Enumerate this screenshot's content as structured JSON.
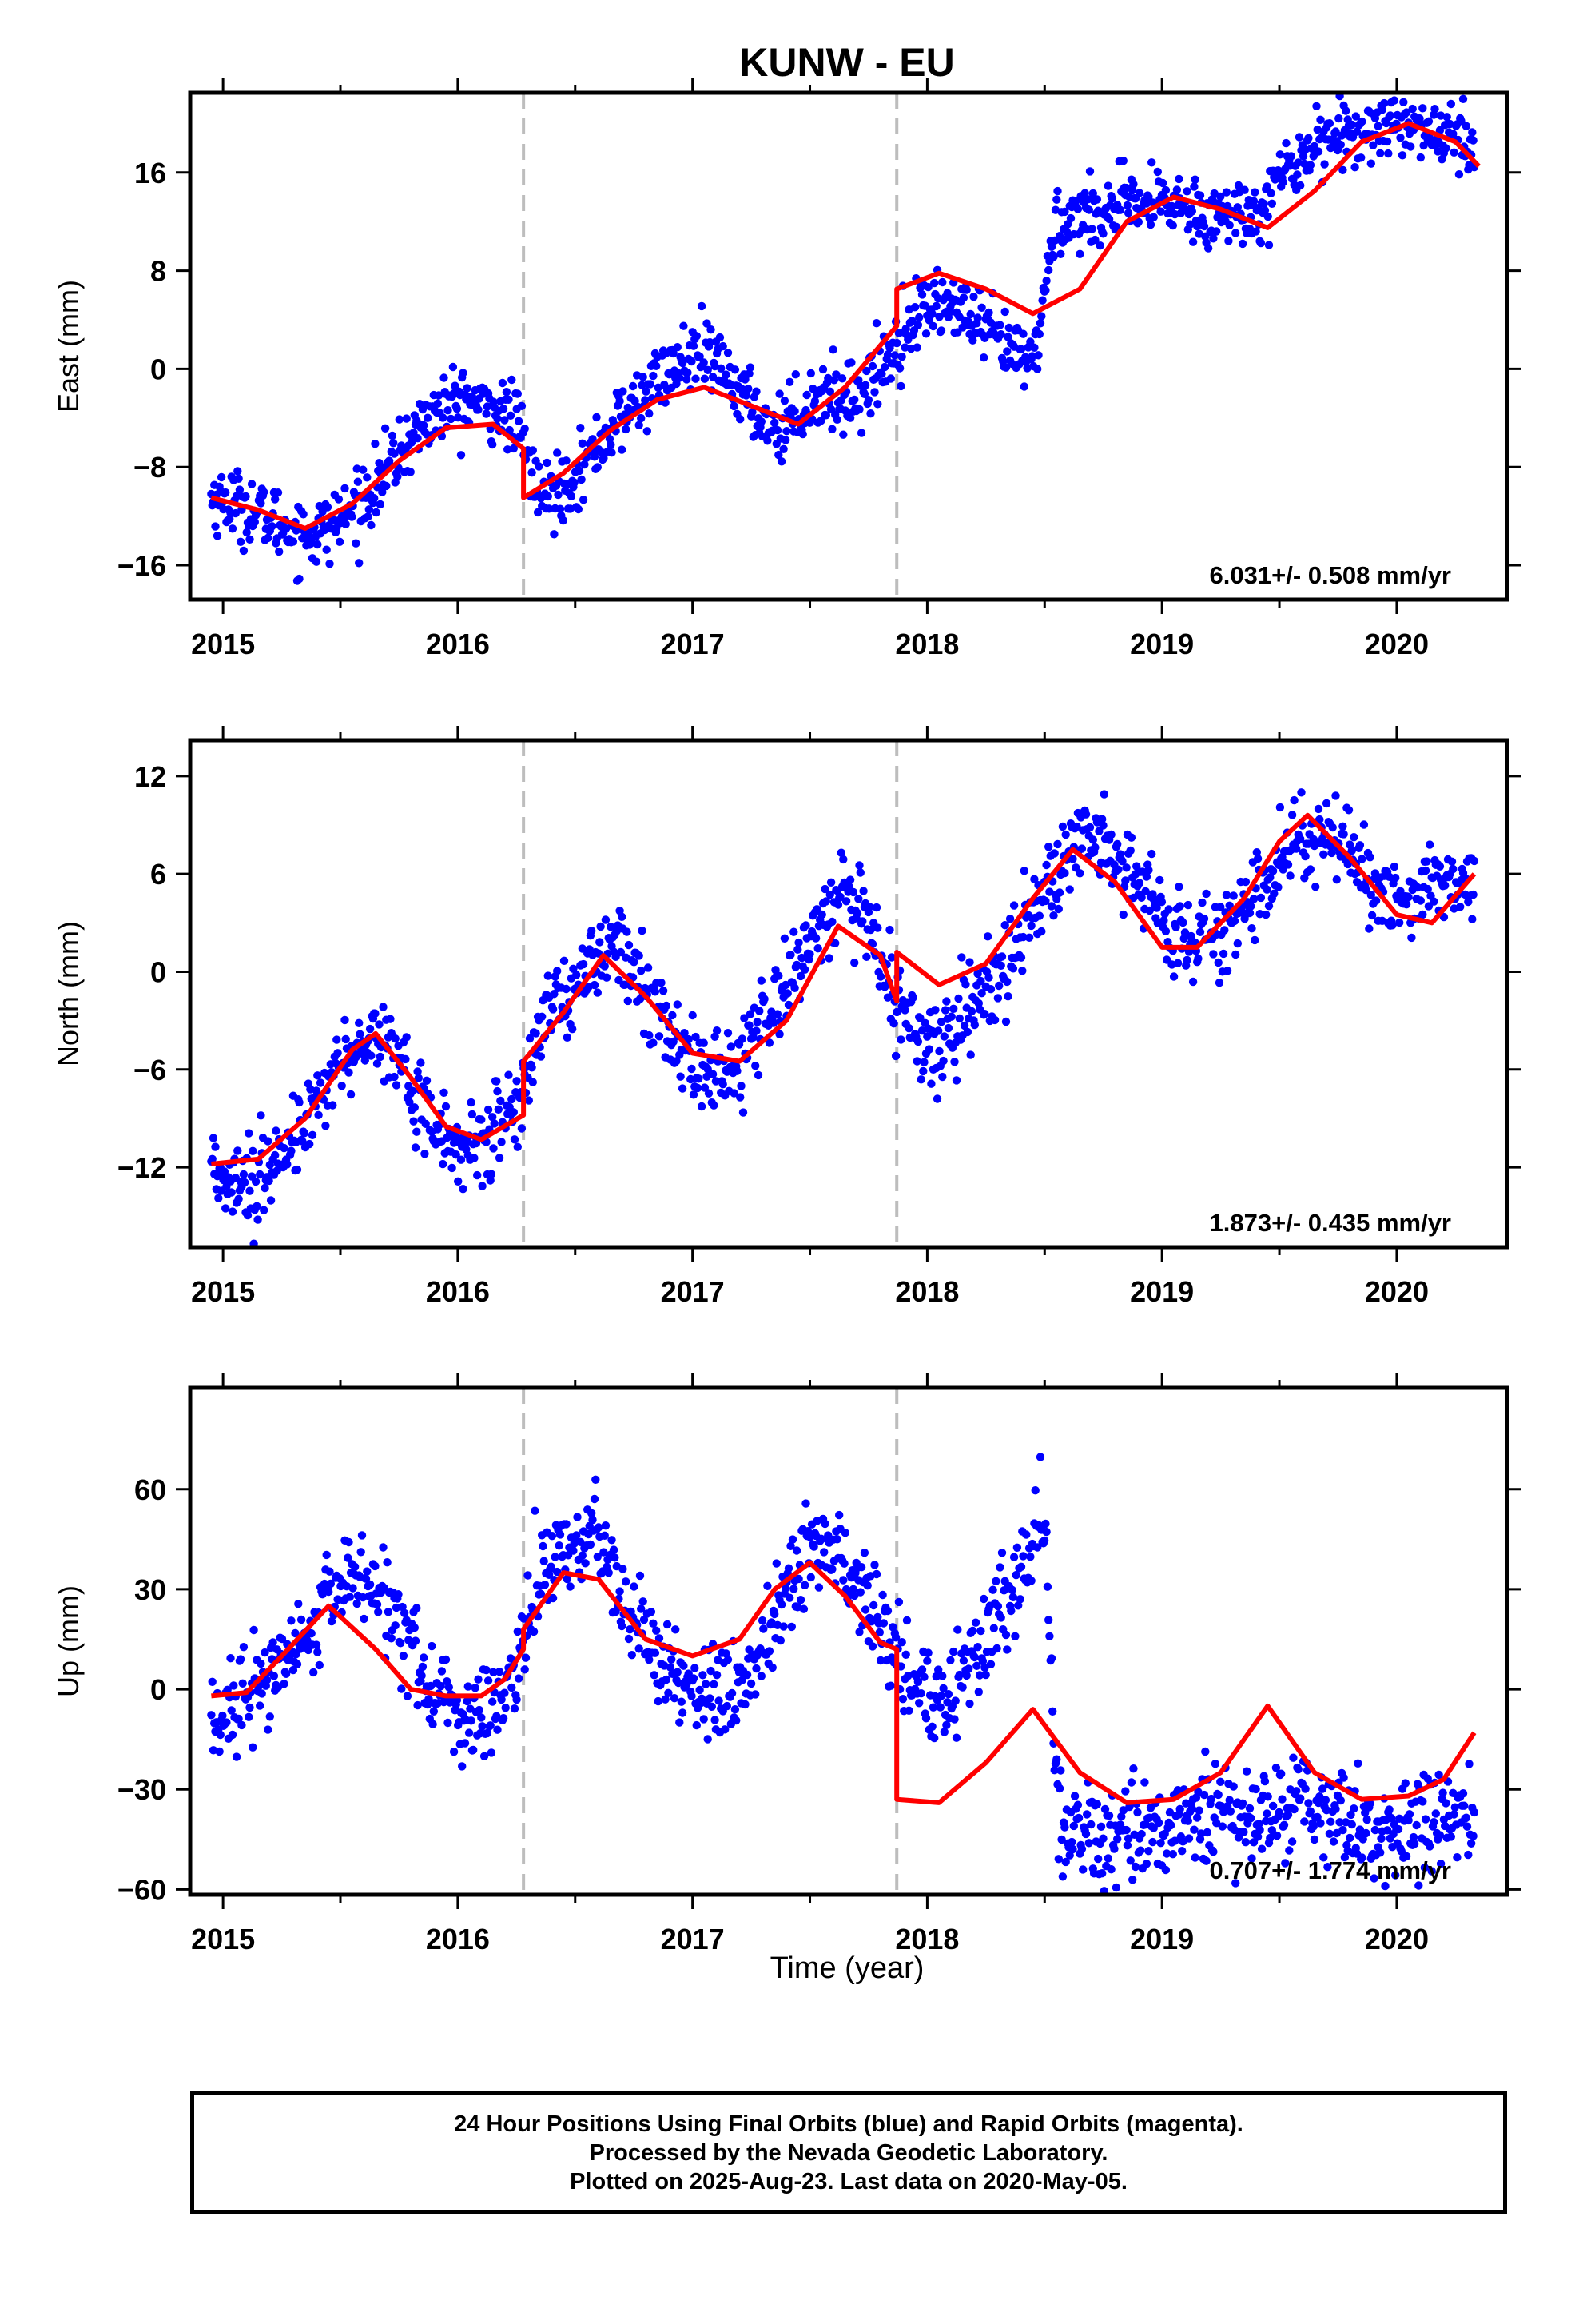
{
  "title": "KUNW - EU",
  "xlabel": "Time (year)",
  "colors": {
    "points": "#0000ff",
    "model": "#ff0000",
    "offset_line": "#bdbdbd",
    "axes": "#000000"
  },
  "caption": [
    "24 Hour Positions Using Final Orbits (blue) and Rapid Orbits (magenta).",
    "Processed by the Nevada Geodetic Laboratory.",
    "Plotted on 2025-Aug-23. Last data on 2020-May-05."
  ],
  "chart_data": [
    {
      "type": "scatter",
      "panel": "east",
      "ylabel": "East (mm)",
      "xlim": [
        2014.86,
        2020.47
      ],
      "ylim": [
        -18.8,
        22.5
      ],
      "xticks": [
        2015,
        2016,
        2017,
        2018,
        2019,
        2020
      ],
      "yticks": [
        -16,
        -8,
        0,
        8,
        16
      ],
      "rate_label": "6.031+/- 0.508 mm/yr",
      "offset_epochs": [
        2016.28,
        2017.87
      ],
      "series": [
        {
          "role": "daily_positions",
          "x": [
            2014.95,
            2015.05,
            2015.15,
            2015.25,
            2015.35,
            2015.45,
            2015.55,
            2015.65,
            2015.75,
            2015.85,
            2015.95,
            2016.05,
            2016.15,
            2016.25,
            2016.35,
            2016.45,
            2016.55,
            2016.65,
            2016.75,
            2016.85,
            2016.95,
            2017.05,
            2017.15,
            2017.25,
            2017.35,
            2017.45,
            2017.55,
            2017.65,
            2017.75,
            2017.85,
            2017.95,
            2018.05,
            2018.15,
            2018.25,
            2018.35,
            2018.45,
            2018.55,
            2018.65,
            2018.75,
            2018.85,
            2018.95,
            2019.05,
            2019.15,
            2019.25,
            2019.35,
            2019.45,
            2019.55,
            2019.65,
            2019.75,
            2019.85,
            2019.95,
            2020.05,
            2020.15,
            2020.25,
            2020.33
          ],
          "y": [
            -10.5,
            -11.0,
            -11.8,
            -12.8,
            -13.5,
            -13.0,
            -11.5,
            -9.5,
            -7.0,
            -4.5,
            -3.0,
            -2.6,
            -3.3,
            -4.2,
            -10.5,
            -9.5,
            -7.5,
            -5.0,
            -3.0,
            -1.0,
            0.5,
            1.0,
            -0.5,
            -3.0,
            -5.0,
            -3.5,
            -2.0,
            -2.5,
            -1.5,
            1.5,
            4.5,
            5.5,
            4.5,
            3.0,
            1.5,
            0.5,
            12.0,
            12.5,
            13.0,
            13.2,
            13.3,
            13.5,
            13.0,
            12.5,
            12.5,
            14.0,
            16.5,
            18.5,
            19.0,
            19.5,
            20.0,
            20.5,
            19.5,
            18.5,
            18.0
          ]
        },
        {
          "role": "model_fit",
          "x": [
            2014.95,
            2015.15,
            2015.35,
            2015.55,
            2015.75,
            2015.95,
            2016.15,
            2016.28,
            2016.28,
            2016.45,
            2016.65,
            2016.85,
            2017.05,
            2017.25,
            2017.45,
            2017.65,
            2017.87,
            2017.87,
            2018.05,
            2018.25,
            2018.45,
            2018.65,
            2018.85,
            2019.05,
            2019.25,
            2019.45,
            2019.65,
            2019.85,
            2020.05,
            2020.25,
            2020.35
          ],
          "y": [
            -10.5,
            -11.5,
            -13.0,
            -11.0,
            -7.5,
            -4.8,
            -4.5,
            -6.5,
            -10.5,
            -8.5,
            -5.0,
            -2.5,
            -1.5,
            -3.0,
            -4.5,
            -1.5,
            3.5,
            6.5,
            7.8,
            6.5,
            4.5,
            6.5,
            12.0,
            14.0,
            13.0,
            11.5,
            14.5,
            18.5,
            20.0,
            18.5,
            16.5
          ]
        }
      ]
    },
    {
      "type": "scatter",
      "panel": "north",
      "ylabel": "North (mm)",
      "xlim": [
        2014.86,
        2020.47
      ],
      "ylim": [
        -16.9,
        14.2
      ],
      "xticks": [
        2015,
        2016,
        2017,
        2018,
        2019,
        2020
      ],
      "yticks": [
        -12,
        -6,
        0,
        6,
        12
      ],
      "rate_label": "1.873+/- 0.435 mm/yr",
      "offset_epochs": [
        2016.28,
        2017.87
      ],
      "series": [
        {
          "role": "daily_positions",
          "x": [
            2014.95,
            2015.05,
            2015.15,
            2015.25,
            2015.35,
            2015.45,
            2015.55,
            2015.65,
            2015.75,
            2015.85,
            2015.95,
            2016.05,
            2016.15,
            2016.25,
            2016.35,
            2016.45,
            2016.55,
            2016.65,
            2016.75,
            2016.85,
            2016.95,
            2017.05,
            2017.15,
            2017.25,
            2017.35,
            2017.45,
            2017.55,
            2017.65,
            2017.75,
            2017.85,
            2017.95,
            2018.05,
            2018.15,
            2018.25,
            2018.35,
            2018.45,
            2018.55,
            2018.65,
            2018.75,
            2018.85,
            2018.95,
            2019.05,
            2019.15,
            2019.25,
            2019.35,
            2019.45,
            2019.55,
            2019.65,
            2019.75,
            2019.85,
            2019.95,
            2020.05,
            2020.15,
            2020.25,
            2020.33
          ],
          "y": [
            -12.0,
            -12.5,
            -13.0,
            -11.5,
            -9.5,
            -6.5,
            -4.5,
            -3.5,
            -5.5,
            -8.5,
            -10.5,
            -11.0,
            -10.0,
            -8.5,
            -3.0,
            -1.5,
            0.5,
            2.0,
            0.0,
            -2.5,
            -4.5,
            -6.5,
            -6.0,
            -4.0,
            -1.5,
            0.5,
            3.5,
            5.0,
            2.0,
            -1.0,
            -4.0,
            -4.5,
            -3.0,
            -1.5,
            1.0,
            3.5,
            5.5,
            8.0,
            7.5,
            6.0,
            4.5,
            2.0,
            2.0,
            2.5,
            4.0,
            6.0,
            7.5,
            8.5,
            7.5,
            6.0,
            5.0,
            4.5,
            5.0,
            5.5,
            5.0
          ]
        },
        {
          "role": "model_fit",
          "x": [
            2014.95,
            2015.15,
            2015.35,
            2015.55,
            2015.65,
            2015.8,
            2015.95,
            2016.1,
            2016.28,
            2016.28,
            2016.45,
            2016.62,
            2016.8,
            2017.0,
            2017.2,
            2017.4,
            2017.62,
            2017.8,
            2017.87,
            2017.87,
            2018.05,
            2018.25,
            2018.45,
            2018.62,
            2018.8,
            2019.0,
            2019.15,
            2019.35,
            2019.5,
            2019.62,
            2019.8,
            2020.0,
            2020.15,
            2020.33
          ],
          "y": [
            -11.8,
            -11.5,
            -9.0,
            -4.8,
            -3.8,
            -6.5,
            -9.5,
            -10.3,
            -8.8,
            -5.5,
            -2.5,
            1.0,
            -1.5,
            -5.0,
            -5.5,
            -3.0,
            2.8,
            1.0,
            -1.8,
            1.2,
            -0.8,
            0.5,
            4.5,
            7.5,
            5.5,
            1.5,
            1.5,
            4.5,
            8.0,
            9.6,
            7.0,
            3.5,
            3.0,
            6.0
          ]
        }
      ]
    },
    {
      "type": "scatter",
      "panel": "up",
      "ylabel": "Up (mm)",
      "xlim": [
        2014.86,
        2020.47
      ],
      "ylim": [
        -61.6,
        90.4
      ],
      "xticks": [
        2015,
        2016,
        2017,
        2018,
        2019,
        2020
      ],
      "yticks": [
        -60,
        -30,
        0,
        30,
        60
      ],
      "rate_label": "0.707+/- 1.774 mm/yr",
      "offset_epochs": [
        2016.28,
        2017.87
      ],
      "series": [
        {
          "role": "daily_positions",
          "x": [
            2014.95,
            2015.05,
            2015.15,
            2015.25,
            2015.35,
            2015.45,
            2015.55,
            2015.65,
            2015.75,
            2015.85,
            2015.95,
            2016.05,
            2016.15,
            2016.25,
            2016.35,
            2016.45,
            2016.55,
            2016.65,
            2016.75,
            2016.85,
            2016.95,
            2017.05,
            2017.15,
            2017.25,
            2017.35,
            2017.45,
            2017.55,
            2017.65,
            2017.75,
            2017.85,
            2017.95,
            2018.05,
            2018.15,
            2018.25,
            2018.35,
            2018.45,
            2018.5,
            2018.55,
            2018.65,
            2018.75,
            2018.85,
            2018.95,
            2019.05,
            2019.15,
            2019.25,
            2019.35,
            2019.45,
            2019.55,
            2019.65,
            2019.75,
            2019.85,
            2019.95,
            2020.05,
            2020.15,
            2020.25,
            2020.33
          ],
          "y": [
            -10,
            -8,
            0,
            8,
            15,
            28,
            35,
            30,
            18,
            5,
            -5,
            -10,
            -8,
            5,
            32,
            42,
            45,
            35,
            22,
            10,
            2,
            -2,
            0,
            8,
            22,
            38,
            45,
            40,
            25,
            12,
            2,
            -5,
            5,
            15,
            25,
            45,
            55,
            -38,
            -42,
            -46,
            -44,
            -42,
            -40,
            -38,
            -36,
            -38,
            -40,
            -34,
            -35,
            -38,
            -42,
            -44,
            -41,
            -38,
            -37,
            -38
          ]
        },
        {
          "role": "model_fit",
          "x": [
            2014.95,
            2015.1,
            2015.25,
            2015.45,
            2015.65,
            2015.8,
            2015.95,
            2016.1,
            2016.2,
            2016.28,
            2016.28,
            2016.45,
            2016.6,
            2016.8,
            2017.0,
            2017.2,
            2017.35,
            2017.5,
            2017.65,
            2017.8,
            2017.87,
            2017.87,
            2018.05,
            2018.25,
            2018.45,
            2018.65,
            2018.85,
            2019.05,
            2019.25,
            2019.45,
            2019.65,
            2019.85,
            2020.05,
            2020.2,
            2020.33
          ],
          "y": [
            -2,
            -1,
            10,
            25,
            12,
            0,
            -2,
            -2,
            3,
            12,
            18,
            35,
            33,
            15,
            10,
            15,
            30,
            38,
            28,
            14,
            12,
            -33,
            -34,
            -22,
            -6,
            -25,
            -34,
            -33,
            -25,
            -5,
            -25,
            -33,
            -32,
            -27,
            -13
          ]
        }
      ]
    }
  ]
}
